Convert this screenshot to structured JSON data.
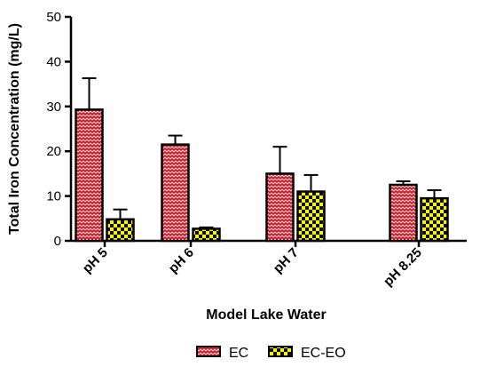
{
  "chart_data": {
    "type": "bar",
    "xlabel": "Model Lake Water",
    "ylabel": "Total Iron Concentration (mg/L)",
    "ylim": [
      0,
      50
    ],
    "yticks": [
      0,
      10,
      20,
      30,
      40,
      50
    ],
    "categories": [
      "pH 5",
      "pH 6",
      "pH 7",
      "pH 8.25"
    ],
    "series": [
      {
        "name": "EC",
        "values": [
          29.3,
          21.5,
          15.0,
          12.5
        ],
        "errors": [
          7.0,
          2.0,
          6.0,
          0.8
        ],
        "fill": "#e0101e",
        "pattern": "zigzag"
      },
      {
        "name": "EC-EO",
        "values": [
          4.8,
          2.7,
          11.0,
          9.5
        ],
        "errors": [
          2.2,
          0.3,
          3.7,
          1.8
        ],
        "fill": "#f5f50a",
        "pattern": "checker"
      }
    ],
    "legend_position": "bottom-center",
    "grid": false
  }
}
